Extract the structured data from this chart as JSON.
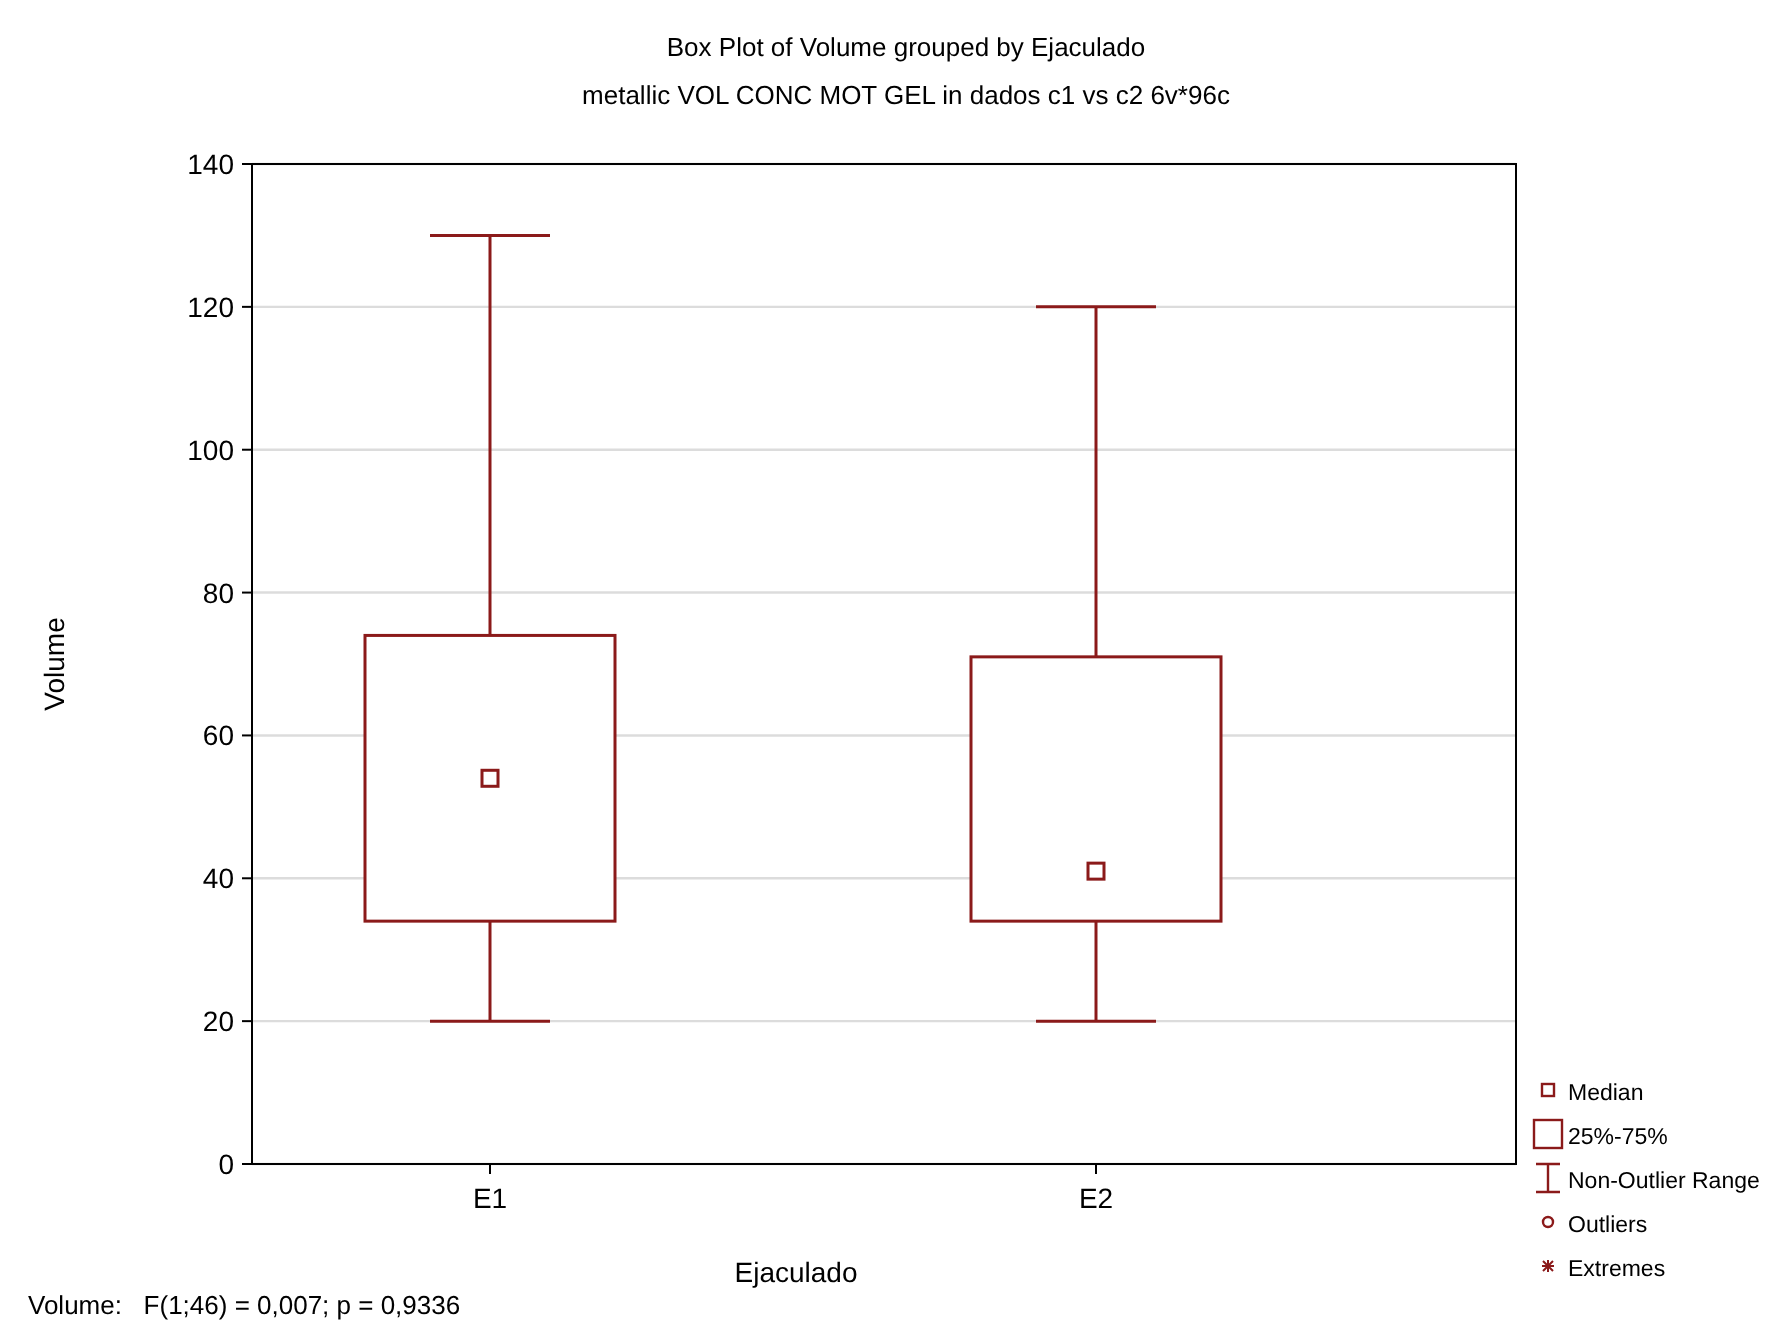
{
  "chart_data": {
    "type": "box",
    "title": "Box Plot of Volume grouped by  Ejaculado",
    "subtitle": "metallic VOL CONC MOT GEL in dados c1 vs c2 6v*96c",
    "xlabel": "Ejaculado",
    "ylabel": "Volume",
    "categories": [
      "E1",
      "E2"
    ],
    "color": "#8b1a1a",
    "boxes": [
      {
        "low": 20,
        "q1": 34,
        "median": 54,
        "q3": 74,
        "high": 130
      },
      {
        "low": 20,
        "q1": 34,
        "median": 41,
        "q3": 71,
        "high": 120
      }
    ],
    "ylim": [
      0,
      140
    ],
    "yticks": [
      0,
      20,
      40,
      60,
      80,
      100,
      120,
      140
    ],
    "grid": "y",
    "annotations": [
      "Median",
      "25%-75%",
      "Non-Outlier Range",
      "Outliers",
      "Extremes",
      "Volume:   F(1;46) = 0,007; p = 0,9336"
    ]
  }
}
